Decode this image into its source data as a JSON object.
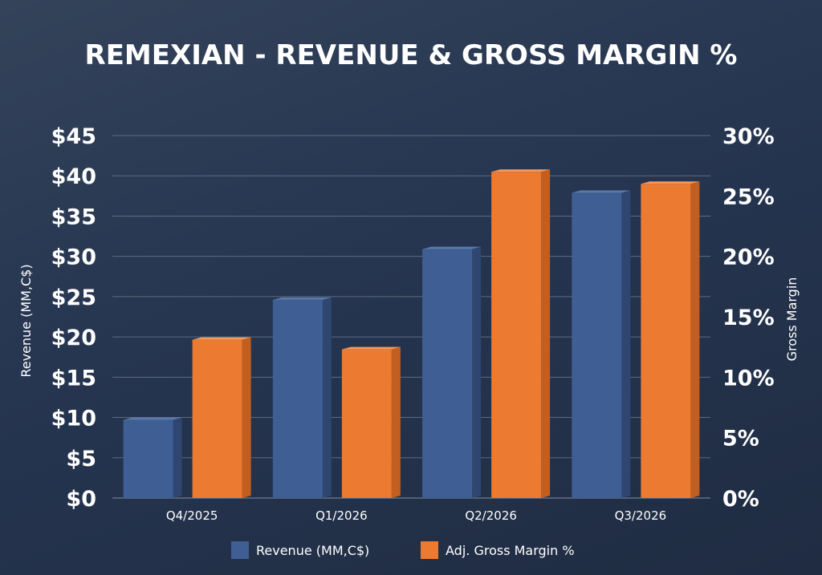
{
  "colors": {
    "revenue_front": "#3f5f94",
    "revenue_side": "#2e4670",
    "revenue_top": "#5a78aa",
    "margin_front": "#ec7a30",
    "margin_side": "#c25f20",
    "margin_top": "#f4995c",
    "grid": "#5d6b80",
    "text": "#ffffff"
  },
  "chart_data": {
    "type": "bar",
    "title": "REMEXIAN - REVENUE & GROSS MARGIN %",
    "categories": [
      "Q4/2025",
      "Q1/2026",
      "Q2/2026",
      "Q3/2026"
    ],
    "ylabel": "Revenue (MM,C$)",
    "y2label": "Gross Margin",
    "ylim": [
      0,
      45
    ],
    "y2lim": [
      0,
      30
    ],
    "yticks": [
      "$0",
      "$5",
      "$10",
      "$15",
      "$20",
      "$25",
      "$30",
      "$35",
      "$40",
      "$45"
    ],
    "y2ticks": [
      "0%",
      "5%",
      "10%",
      "15%",
      "20%",
      "25%",
      "30%"
    ],
    "grid": true,
    "legend_position": "bottom",
    "series": [
      {
        "name": "Revenue (MM,C$)",
        "axis": "left",
        "values": [
          9.7,
          24.6,
          30.9,
          37.9
        ]
      },
      {
        "name": "Adj. Gross Margin %",
        "axis": "right",
        "values": [
          13.1,
          12.3,
          27.0,
          26.0
        ]
      }
    ]
  }
}
